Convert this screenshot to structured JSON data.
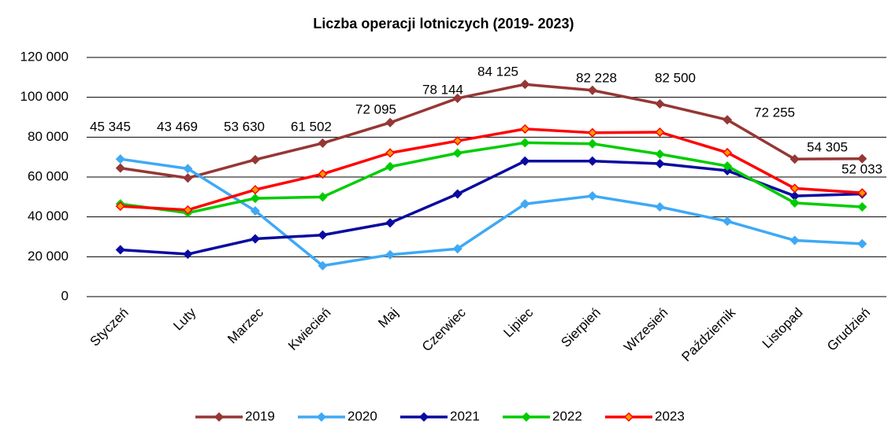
{
  "chart_data": {
    "type": "line",
    "title": "Liczba operacji lotniczych (2019- 2023)",
    "categories": [
      "Styczeń",
      "Luty",
      "Marzec",
      "Kwiecień",
      "Maj",
      "Czerwiec",
      "Lipiec",
      "Sierpień",
      "Wrzesień",
      "Październik",
      "Listopad",
      "Grudzień"
    ],
    "series": [
      {
        "name": "2019",
        "color": "#953735",
        "values": [
          64500,
          59500,
          68700,
          77000,
          87300,
          99500,
          106500,
          103500,
          96700,
          88700,
          69000,
          69200
        ]
      },
      {
        "name": "2020",
        "color": "#3fa9f5",
        "values": [
          69000,
          64200,
          43000,
          15500,
          21000,
          24000,
          46500,
          50500,
          45000,
          37800,
          28200,
          26500
        ]
      },
      {
        "name": "2021",
        "color": "#0a0aa0",
        "values": [
          23500,
          21300,
          29000,
          30900,
          37000,
          51500,
          68000,
          68000,
          66700,
          63200,
          50500,
          51500
        ]
      },
      {
        "name": "2022",
        "color": "#00cc00",
        "values": [
          46500,
          42000,
          49300,
          50000,
          65200,
          72000,
          77200,
          76700,
          71500,
          65500,
          47000,
          45000
        ]
      },
      {
        "name": "2023",
        "color": "#ff0000",
        "marker_fill": "#ff9900",
        "values": [
          45345,
          43469,
          53630,
          61502,
          72095,
          78144,
          84125,
          82228,
          82500,
          72255,
          54305,
          52033
        ],
        "value_labels": [
          "45 345",
          "43 469",
          "53 630",
          "61 502",
          "72 095",
          "78 144",
          "84 125",
          "82 228",
          "82 500",
          "72 255",
          "54 305",
          "52 033"
        ]
      }
    ],
    "ylim": [
      0,
      120000
    ],
    "yticks": [
      0,
      {
        "value": 20000,
        "label": "20 000"
      },
      {
        "value": 40000,
        "label": "40 000"
      },
      {
        "value": 60000,
        "label": "60 000"
      },
      {
        "value": 80000,
        "label": "80 000"
      },
      {
        "value": 100000,
        "label": "100 000"
      },
      {
        "value": 120000,
        "label": "120 000"
      }
    ],
    "grid": true,
    "legend": "bottom"
  }
}
